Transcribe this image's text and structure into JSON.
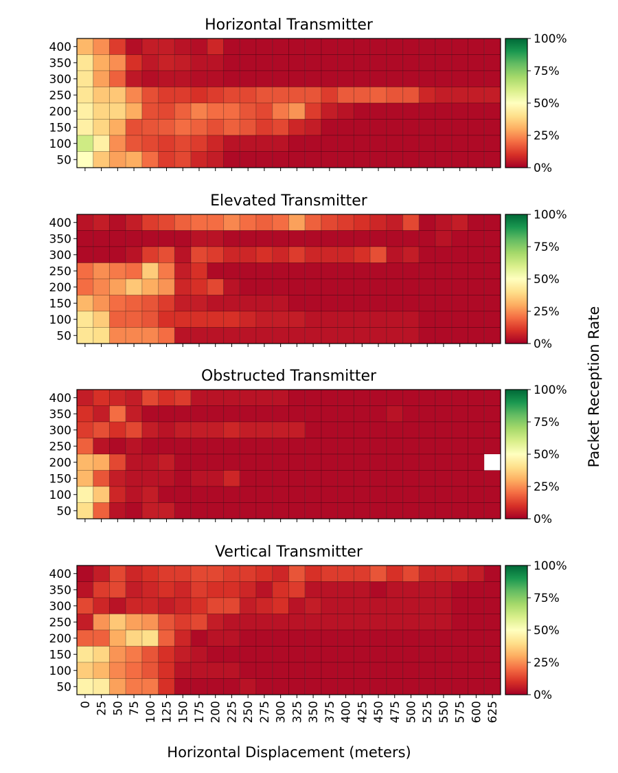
{
  "chart_data": {
    "type": "heatmap",
    "x_label": "Horizontal Displacement (meters)",
    "colorbar_label": "Packet Reception Rate",
    "colorbar_ticks": [
      "0%",
      "25%",
      "50%",
      "75%",
      "100%"
    ],
    "colormap": "RdYlGn",
    "colormap_stops": [
      "#a50026",
      "#d73027",
      "#f46d43",
      "#fdae61",
      "#fee08b",
      "#ffffbf",
      "#d9ef8b",
      "#a6d96a",
      "#66bd63",
      "#1a9850",
      "#006837"
    ],
    "missing_color": "#ffffff",
    "value_range": [
      0,
      100
    ],
    "x_ticks": [
      0,
      25,
      50,
      75,
      100,
      125,
      150,
      175,
      200,
      225,
      250,
      275,
      300,
      325,
      350,
      375,
      400,
      425,
      450,
      475,
      500,
      525,
      550,
      575,
      600,
      625
    ],
    "y_ticks": [
      400,
      350,
      300,
      250,
      200,
      150,
      100,
      50
    ],
    "panels": [
      {
        "title": "Horizontal Transmitter",
        "rows": [
          [
            32,
            25,
            12,
            3,
            6,
            6,
            4,
            3,
            8,
            2,
            2,
            2,
            2,
            2,
            2,
            2,
            2,
            2,
            2,
            2,
            2,
            2,
            2,
            2,
            2,
            2
          ],
          [
            42,
            30,
            25,
            10,
            5,
            7,
            6,
            4,
            4,
            2,
            2,
            2,
            2,
            2,
            2,
            2,
            2,
            2,
            2,
            2,
            2,
            2,
            2,
            2,
            2,
            2
          ],
          [
            42,
            28,
            18,
            5,
            3,
            4,
            4,
            3,
            3,
            2,
            2,
            2,
            2,
            2,
            2,
            2,
            2,
            2,
            2,
            2,
            2,
            2,
            2,
            2,
            2,
            2
          ],
          [
            42,
            35,
            35,
            24,
            15,
            12,
            12,
            10,
            12,
            14,
            14,
            16,
            16,
            16,
            16,
            12,
            17,
            17,
            18,
            16,
            16,
            8,
            6,
            6,
            6,
            6
          ],
          [
            45,
            38,
            38,
            30,
            15,
            14,
            18,
            23,
            20,
            20,
            16,
            14,
            22,
            26,
            12,
            6,
            4,
            2,
            2,
            2,
            2,
            2,
            2,
            2,
            2,
            2
          ],
          [
            45,
            38,
            30,
            15,
            16,
            17,
            20,
            18,
            15,
            18,
            16,
            12,
            14,
            8,
            6,
            2,
            2,
            2,
            2,
            2,
            2,
            2,
            2,
            2,
            2,
            2
          ],
          [
            62,
            45,
            25,
            16,
            14,
            12,
            14,
            12,
            8,
            4,
            4,
            4,
            4,
            2,
            2,
            2,
            2,
            2,
            2,
            2,
            2,
            2,
            2,
            2,
            2,
            2
          ],
          [
            50,
            35,
            28,
            30,
            20,
            12,
            14,
            8,
            6,
            2,
            2,
            2,
            2,
            2,
            2,
            2,
            2,
            2,
            2,
            2,
            2,
            2,
            2,
            2,
            2,
            2
          ]
        ]
      },
      {
        "title": "Elevated Transmitter",
        "rows": [
          [
            4,
            6,
            3,
            6,
            12,
            14,
            18,
            20,
            20,
            24,
            20,
            18,
            20,
            28,
            18,
            14,
            12,
            10,
            8,
            6,
            14,
            2,
            4,
            6,
            2,
            2
          ],
          [
            2,
            2,
            2,
            2,
            2,
            2,
            2,
            4,
            4,
            2,
            2,
            2,
            2,
            2,
            2,
            2,
            2,
            2,
            2,
            2,
            2,
            2,
            4,
            2,
            2,
            2
          ],
          [
            2,
            2,
            2,
            4,
            12,
            15,
            4,
            14,
            12,
            8,
            8,
            10,
            8,
            12,
            8,
            8,
            8,
            10,
            15,
            4,
            6,
            2,
            2,
            2,
            2,
            2
          ],
          [
            20,
            25,
            22,
            20,
            36,
            22,
            6,
            10,
            2,
            2,
            2,
            2,
            2,
            2,
            2,
            2,
            2,
            2,
            2,
            2,
            2,
            2,
            2,
            2,
            2,
            2
          ],
          [
            20,
            24,
            28,
            35,
            30,
            26,
            8,
            10,
            14,
            4,
            2,
            2,
            2,
            2,
            2,
            2,
            2,
            2,
            2,
            2,
            2,
            2,
            2,
            2,
            2,
            2
          ],
          [
            32,
            26,
            20,
            18,
            16,
            12,
            6,
            6,
            4,
            4,
            4,
            4,
            4,
            2,
            2,
            2,
            2,
            2,
            2,
            2,
            2,
            2,
            2,
            2,
            2,
            2
          ],
          [
            42,
            36,
            18,
            18,
            16,
            10,
            10,
            10,
            10,
            10,
            8,
            6,
            6,
            6,
            4,
            4,
            4,
            4,
            4,
            4,
            4,
            2,
            2,
            2,
            2,
            2
          ],
          [
            42,
            40,
            24,
            24,
            24,
            20,
            4,
            4,
            4,
            4,
            4,
            4,
            4,
            4,
            4,
            4,
            4,
            4,
            4,
            4,
            4,
            2,
            2,
            2,
            2,
            2
          ]
        ]
      },
      {
        "title": "Obstructed Transmitter",
        "rows": [
          [
            6,
            10,
            8,
            6,
            14,
            10,
            12,
            4,
            4,
            4,
            4,
            4,
            4,
            2,
            2,
            2,
            2,
            2,
            2,
            2,
            2,
            2,
            2,
            2,
            2,
            2
          ],
          [
            10,
            6,
            20,
            6,
            2,
            2,
            2,
            2,
            2,
            2,
            2,
            2,
            2,
            2,
            2,
            2,
            2,
            2,
            2,
            4,
            2,
            2,
            2,
            2,
            2,
            2
          ],
          [
            12,
            15,
            10,
            14,
            6,
            4,
            6,
            6,
            6,
            8,
            6,
            6,
            6,
            6,
            2,
            2,
            2,
            2,
            2,
            2,
            2,
            2,
            2,
            2,
            2,
            2
          ],
          [
            18,
            4,
            2,
            4,
            2,
            2,
            2,
            2,
            2,
            2,
            2,
            2,
            2,
            2,
            2,
            2,
            2,
            2,
            2,
            2,
            2,
            2,
            2,
            2,
            2,
            2
          ],
          [
            32,
            30,
            14,
            4,
            4,
            6,
            2,
            2,
            2,
            2,
            2,
            2,
            2,
            2,
            2,
            2,
            2,
            2,
            2,
            2,
            2,
            2,
            2,
            2,
            2,
            null
          ],
          [
            32,
            16,
            6,
            4,
            4,
            4,
            2,
            4,
            4,
            8,
            2,
            2,
            2,
            2,
            2,
            2,
            2,
            2,
            2,
            2,
            2,
            2,
            2,
            2,
            2,
            2
          ],
          [
            46,
            35,
            8,
            4,
            6,
            2,
            2,
            2,
            2,
            2,
            2,
            2,
            2,
            2,
            2,
            2,
            2,
            2,
            2,
            2,
            2,
            2,
            2,
            2,
            2,
            2
          ],
          [
            40,
            18,
            4,
            2,
            6,
            6,
            2,
            2,
            2,
            2,
            2,
            2,
            2,
            2,
            2,
            2,
            2,
            2,
            2,
            2,
            2,
            2,
            2,
            2,
            2,
            2
          ]
        ]
      },
      {
        "title": "Vertical Transmitter",
        "rows": [
          [
            2,
            6,
            14,
            8,
            10,
            12,
            12,
            14,
            14,
            12,
            12,
            10,
            8,
            16,
            10,
            12,
            12,
            12,
            16,
            10,
            14,
            8,
            8,
            8,
            6,
            2
          ],
          [
            4,
            12,
            14,
            6,
            8,
            10,
            8,
            12,
            10,
            10,
            8,
            4,
            10,
            12,
            4,
            4,
            4,
            4,
            2,
            4,
            4,
            4,
            4,
            2,
            2,
            2
          ],
          [
            14,
            8,
            4,
            8,
            8,
            6,
            8,
            10,
            14,
            14,
            6,
            8,
            10,
            4,
            6,
            4,
            4,
            4,
            4,
            4,
            4,
            4,
            4,
            2,
            2,
            2
          ],
          [
            6,
            26,
            35,
            28,
            26,
            16,
            12,
            14,
            6,
            4,
            4,
            4,
            4,
            4,
            4,
            4,
            4,
            4,
            4,
            4,
            4,
            4,
            4,
            2,
            2,
            2
          ],
          [
            18,
            18,
            30,
            38,
            40,
            18,
            8,
            2,
            4,
            4,
            2,
            2,
            2,
            2,
            2,
            2,
            2,
            2,
            2,
            2,
            2,
            2,
            2,
            2,
            2,
            2
          ],
          [
            42,
            38,
            26,
            22,
            16,
            10,
            6,
            4,
            2,
            2,
            2,
            2,
            2,
            2,
            2,
            2,
            2,
            2,
            2,
            2,
            2,
            2,
            2,
            2,
            2,
            2
          ],
          [
            36,
            32,
            24,
            20,
            16,
            10,
            4,
            4,
            4,
            4,
            2,
            2,
            2,
            2,
            2,
            2,
            2,
            2,
            2,
            2,
            2,
            2,
            2,
            2,
            2,
            2
          ],
          [
            46,
            44,
            28,
            22,
            22,
            10,
            2,
            2,
            2,
            2,
            4,
            2,
            2,
            2,
            2,
            2,
            2,
            2,
            2,
            2,
            2,
            2,
            2,
            2,
            2,
            2
          ]
        ]
      }
    ]
  }
}
